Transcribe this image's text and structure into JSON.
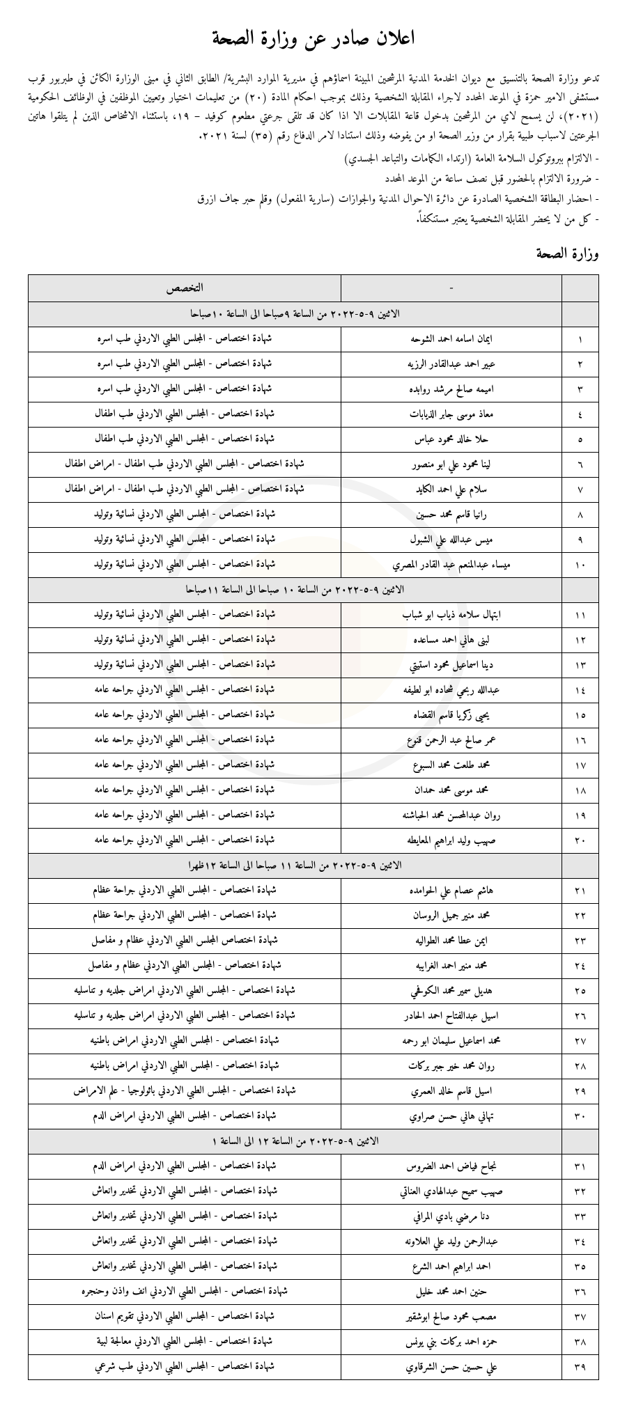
{
  "title": "اعلان صادر عن وزارة الصحة",
  "intro": "تدعو وزارة الصحة بالتنسيق مع ديوان الخدمة المدنية المرشحين المبينة اسماؤهم في مديرية الموارد البشرية/ الطابق الثاني في مبنى الوزارة الكائن في طبربور قرب مستشفى الامير حمزة في الموعد المحدد لاجراء المقابلة الشخصية وذلك بموجب احكام المادة (٢٠) من تعليمات اختيار وتعيين الموظفين في الوظائف الحكومية (٢٠٢١)، لن يسمح لاي من المرشحين بدخول قاعة المقابلات الا اذا كان قد تلقى جرعتي مطعوم كوفيد – ١٩، باستثناء الاشخاص الذين لم يتلقوا هاتين الجرعتين لاسباب طبية بقرار من وزير الصحة او من يفوضه وذلك استنادا لامر الدفاع رقم (٣٥) لسنة ٢٠٢١.",
  "bullets": [
    "- الالتزام ببروتوكول السلامة العامة (ارتداء الكمامات والتباعد الجسدي)",
    "- ضرورة الالتزام بالحضور قبل نصف ساعة من الموعد المحدد",
    "- احضار البطاقة الشخصية الصادرة عن دائرة الاحوال المدنية والجوازات (سارية المفعول) وقلم حبر جاف ازرق",
    "- كل من لا يحضر المقابلة الشخصية يعتبر مستنكفاً."
  ],
  "subtitle": "وزارة الصحة",
  "headers": {
    "num": "",
    "name": "-",
    "spec": "التخصص"
  },
  "sections": [
    {
      "schedule": "الاثنين ٩-٥-٢٠٢٢ من الساعة ٩صباحا الى الساعة ١٠صباحا",
      "rows": [
        {
          "n": "١",
          "name": "ايمان اسامه احمد الشوحه",
          "spec": "شهادة اختصاص - المجلس الطبي الاردني طب اسره"
        },
        {
          "n": "٢",
          "name": "عبير احمد عبدالقادر الرزيه",
          "spec": "شهادة اختصاص - المجلس الطبي الاردني طب اسره"
        },
        {
          "n": "٣",
          "name": "اميمه صالح مرشد روابده",
          "spec": "شهادة اختصاص - المجلس الطبي الاردني طب اسره"
        },
        {
          "n": "٤",
          "name": "معاذ موسى جابر الذيابات",
          "spec": "شهادة اختصاص - المجلس الطبي الاردني طب اطفال"
        },
        {
          "n": "٥",
          "name": "حلا خالد محمود عباس",
          "spec": "شهادة اختصاص - المجلس الطبي الاردني طب اطفال"
        },
        {
          "n": "٦",
          "name": "لينا محمود علي ابو منصور",
          "spec": "شهادة اختصاص - المجلس الطبي الاردني طب اطفال - امراض اطفال"
        },
        {
          "n": "٧",
          "name": "سلام علي احمد الكايد",
          "spec": "شهادة اختصاص - المجلس الطبي الاردني طب اطفال - امراض اطفال"
        },
        {
          "n": "٨",
          "name": "رانيا قاسم محمد حسين",
          "spec": "شهادة اختصاص - المجلس الطبي الاردني نسائية وتوليد"
        },
        {
          "n": "٩",
          "name": "ميس عبدالله علي الشبول",
          "spec": "شهادة اختصاص - المجلس الطبي الاردني نسائية وتوليد"
        },
        {
          "n": "١٠",
          "name": "ميساء عبدالمنعم عبد القادر المصري",
          "spec": "شهادة اختصاص - المجلس الطبي الاردني نسائية وتوليد"
        }
      ]
    },
    {
      "schedule": "الاثنين ٩-٥-٢٠٢٢ من الساعة ١٠ صباحا الى الساعة ١١صباحا",
      "rows": [
        {
          "n": "١١",
          "name": "ابتهال سلامه ذياب ابو شباب",
          "spec": "شهادة اختصاص - المجلس الطبي الاردني نسائية وتوليد"
        },
        {
          "n": "١٢",
          "name": "لبنى هاني احمد مساعده",
          "spec": "شهادة اختصاص - المجلس الطبي الاردني نسائية وتوليد"
        },
        {
          "n": "١٣",
          "name": "دينا اسماعيل محمود استيتي",
          "spec": "شهادة اختصاص - المجلس الطبي الاردني نسائية وتوليد"
        },
        {
          "n": "١٤",
          "name": "عبدالله ربحي شحاده ابو لطيفه",
          "spec": "شهادة اختصاص - المجلس الطبي الاردني جراحه عامه"
        },
        {
          "n": "١٥",
          "name": "يحيى زكريا قاسم القضاه",
          "spec": "شهادة اختصاص - المجلس الطبي الاردني جراحه عامه"
        },
        {
          "n": "١٦",
          "name": "عمر صالح عبد الرحمن قنوع",
          "spec": "شهادة اختصاص - المجلس الطبي الاردني جراحه عامه"
        },
        {
          "n": "١٧",
          "name": "محمد طلعت محمد السبوع",
          "spec": "شهادة اختصاص - المجلس الطبي الاردني جراحه عامه"
        },
        {
          "n": "١٨",
          "name": "محمد موسى محمد حمدان",
          "spec": "شهادة اختصاص - المجلس الطبي الاردني جراحه عامه"
        },
        {
          "n": "١٩",
          "name": "روان عبدالمحسن محمد الحباشنه",
          "spec": "شهادة اختصاص - المجلس الطبي الاردني جراحه عامه"
        },
        {
          "n": "٢٠",
          "name": "صهيب وليد ابراهيم المعايطه",
          "spec": "شهادة اختصاص - المجلس الطبي الاردني جراحه عامه"
        }
      ]
    },
    {
      "schedule": "الاثنين ٩-٥-٢٠٢٢ من الساعة ١١ صباحا الى الساعة ١٢ظهرا",
      "rows": [
        {
          "n": "٢١",
          "name": "هاشم عصام علي الحوامده",
          "spec": "شهادة اختصاص - المجلس الطبي الاردني جراحة عظام"
        },
        {
          "n": "٢٢",
          "name": "محمد منير جميل الروسان",
          "spec": "شهادة اختصاص - المجلس الطبي الاردني جراحة عظام"
        },
        {
          "n": "٢٣",
          "name": "ايمن عطا محمد الطواليه",
          "spec": "شهادة اختصاص المجلس الطبي الاردني عظام و مفاصل"
        },
        {
          "n": "٢٤",
          "name": "محمد منير احمد الغرايبه",
          "spec": "شهادة اختصاص - المجلس الطبي الاردني عظام و مفاصل"
        },
        {
          "n": "٢٥",
          "name": "هديل سمير محمد الكوفحي",
          "spec": "شهادة اختصاص - المجلس الطبي الاردني امراض جلديه و تناسليه"
        },
        {
          "n": "٢٦",
          "name": "اسيل عبدالفتاح احمد الحادر",
          "spec": "شهادة اختصاص - المجلس الطبي الاردني امراض جلديه و تناسليه"
        },
        {
          "n": "٢٧",
          "name": "محمد اسماعيل سليمان ابو رحمه",
          "spec": "شهادة اختصاص - المجلس الطبي الاردني امراض باطنيه"
        },
        {
          "n": "٢٨",
          "name": "روان محمد خير جبر بركات",
          "spec": "شهادة اختصاص - المجلس الطبي الاردني امراض باطنيه"
        },
        {
          "n": "٢٩",
          "name": "اسيل قاسم خالد العمري",
          "spec": "شهادة اختصاص - المجلس الطبي الاردني باثولوجيا - علم الامراض"
        },
        {
          "n": "٣٠",
          "name": "تهاني هاني حسن صراوي",
          "spec": "شهادة اختصاص - المجلس الطبي الاردني امراض الدم"
        }
      ]
    },
    {
      "schedule": "الاثنين ٩-٥-٢٠٢٢ من الساعة ١٢ الى الساعة ١",
      "rows": [
        {
          "n": "٣١",
          "name": "نجاح فياض احمد الضروس",
          "spec": "شهادة اختصاص - المجلس الطبي الاردني امراض الدم"
        },
        {
          "n": "٣٢",
          "name": "صهيب سميح عبدالهادي العناتي",
          "spec": "شهادة اختصاص - المجلس الطبي الاردني تخدير وانعاش"
        },
        {
          "n": "٣٣",
          "name": "دنا مرضي بادي المرافي",
          "spec": "شهادة اختصاص - المجلس الطبي الاردني تخدير وانعاش"
        },
        {
          "n": "٣٤",
          "name": "عبدالرحمن وليد علي العلاونه",
          "spec": "شهادة اختصاص - المجلس الطبي الاردني تخدير وانعاش"
        },
        {
          "n": "٣٥",
          "name": "احمد ابراهيم احمد الشرع",
          "spec": "شهادة اختصاص - المجلس الطبي الاردني تخدير وانعاش"
        },
        {
          "n": "٣٦",
          "name": "حنين احمد محمد خليل",
          "spec": "شهادة اختصاص - المجلس الطبي الاردني انف واذن وحنجره"
        },
        {
          "n": "٣٧",
          "name": "مصعب محمود صالح ابوشقير",
          "spec": "شهادة اختصاص - المجلس الطبي الاردني تقويم اسنان"
        },
        {
          "n": "٣٨",
          "name": "حمزه احمد بركات بني يونس",
          "spec": "شهادة اختصاص - المجلس الطبي الاردني معالجة لبية"
        },
        {
          "n": "٣٩",
          "name": "علي حسين حسن الشرقاوي",
          "spec": "شهادة اختصاص - المجلس الطبي الاردني طب شرعي"
        }
      ]
    }
  ]
}
